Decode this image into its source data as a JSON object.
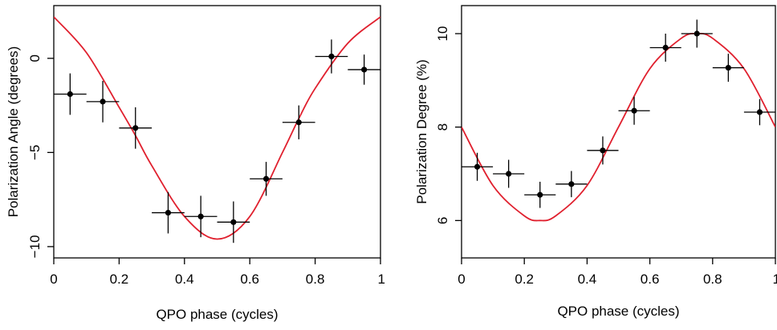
{
  "chart_data": [
    {
      "type": "scatter",
      "title": "",
      "xlabel": "QPO phase (cycles)",
      "ylabel": "Polarization Angle (degrees)",
      "xlim": [
        0,
        1
      ],
      "ylim": [
        -10.6,
        2.8
      ],
      "grid": false,
      "x_ticks": [
        0,
        0.2,
        0.4,
        0.6,
        0.8,
        1
      ],
      "x_tick_labels": [
        "0",
        "0.2",
        "0.4",
        "0.6",
        "0.8",
        "1"
      ],
      "y_ticks": [
        -10,
        -5,
        0
      ],
      "y_tick_labels": [
        "−10",
        "−5",
        "0"
      ],
      "series": [
        {
          "kind": "points_with_errorbars",
          "color": "#000000",
          "x": [
            0.05,
            0.15,
            0.25,
            0.35,
            0.45,
            0.55,
            0.65,
            0.75,
            0.85,
            0.95
          ],
          "x_err": [
            0.05,
            0.05,
            0.05,
            0.05,
            0.05,
            0.05,
            0.05,
            0.05,
            0.05,
            0.05
          ],
          "y": [
            -1.9,
            -2.3,
            -3.7,
            -8.2,
            -8.4,
            -8.7,
            -6.4,
            -3.4,
            0.1,
            -0.6
          ],
          "y_err": [
            1.1,
            1.1,
            1.1,
            1.1,
            1.1,
            1.1,
            0.9,
            0.9,
            0.9,
            0.8
          ]
        },
        {
          "kind": "model_curve",
          "color": "#e0202e",
          "x": [
            0,
            0.1,
            0.2,
            0.25,
            0.3,
            0.4,
            0.5,
            0.6,
            0.7,
            0.75,
            0.8,
            0.9,
            1.0
          ],
          "y": [
            2.2,
            0.3,
            -2.6,
            -4.1,
            -5.7,
            -8.4,
            -9.6,
            -8.4,
            -5.0,
            -3.2,
            -1.6,
            0.8,
            2.2
          ]
        }
      ]
    },
    {
      "type": "scatter",
      "title": "",
      "xlabel": "QPO phase (cycles)",
      "ylabel": "Polarization Degree (%)",
      "xlim": [
        0,
        1
      ],
      "ylim": [
        5.2,
        10.6
      ],
      "grid": false,
      "x_ticks": [
        0,
        0.2,
        0.4,
        0.6,
        0.8,
        1
      ],
      "x_tick_labels": [
        "0",
        "0.2",
        "0.4",
        "0.6",
        "0.8",
        "1"
      ],
      "y_ticks": [
        6,
        8,
        10
      ],
      "y_tick_labels": [
        "6",
        "8",
        "10"
      ],
      "series": [
        {
          "kind": "points_with_errorbars",
          "color": "#000000",
          "x": [
            0.05,
            0.15,
            0.25,
            0.35,
            0.45,
            0.55,
            0.65,
            0.75,
            0.85,
            0.95
          ],
          "x_err": [
            0.05,
            0.05,
            0.05,
            0.05,
            0.05,
            0.05,
            0.05,
            0.05,
            0.05,
            0.05
          ],
          "y": [
            7.15,
            7.0,
            6.55,
            6.78,
            7.5,
            8.35,
            9.7,
            10.0,
            9.27,
            8.32
          ],
          "y_err": [
            0.3,
            0.3,
            0.28,
            0.28,
            0.3,
            0.3,
            0.3,
            0.3,
            0.3,
            0.28
          ]
        },
        {
          "kind": "model_curve",
          "color": "#e0202e",
          "x": [
            0,
            0.1,
            0.2,
            0.25,
            0.3,
            0.4,
            0.5,
            0.6,
            0.7,
            0.75,
            0.8,
            0.9,
            1.0
          ],
          "y": [
            8.0,
            6.75,
            6.1,
            6.0,
            6.1,
            6.75,
            8.0,
            9.25,
            9.9,
            10.0,
            9.9,
            9.25,
            8.0
          ]
        }
      ]
    }
  ]
}
